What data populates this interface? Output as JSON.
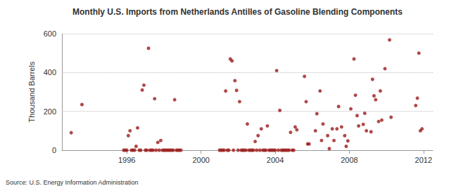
{
  "chart_data": {
    "type": "scatter",
    "title": "Monthly U.S. Imports from Netherlands Antilles of Gasoline Blending Components",
    "y_label": "Thousand Barrels",
    "source": "Source: U.S. Energy Information Administration",
    "color": "#9b1c1c",
    "marker": "circle",
    "grid": true,
    "xlim": [
      1992.5,
      2012.5
    ],
    "xticks": [
      1996,
      2000,
      2004,
      2008,
      2012
    ],
    "ylim": [
      0,
      600
    ],
    "yticks": [
      0,
      200,
      400,
      600
    ],
    "x": [
      1993.0,
      1993.58,
      1995.83,
      1995.92,
      1996.0,
      1996.08,
      1996.17,
      1996.25,
      1996.33,
      1996.42,
      1996.5,
      1996.58,
      1996.67,
      1996.75,
      1996.83,
      1996.92,
      1997.0,
      1997.08,
      1997.17,
      1997.25,
      1997.33,
      1997.42,
      1997.5,
      1997.58,
      1997.67,
      1997.75,
      1997.83,
      1997.92,
      1998.0,
      1998.08,
      1998.17,
      1998.25,
      1998.33,
      1998.42,
      1998.5,
      1998.58,
      1998.67,
      1998.75,
      1998.83,
      1998.92,
      2001.0,
      2001.08,
      2001.17,
      2001.25,
      2001.33,
      2001.42,
      2001.5,
      2001.58,
      2001.67,
      2001.75,
      2001.83,
      2001.92,
      2002.0,
      2002.08,
      2002.17,
      2002.25,
      2002.33,
      2002.42,
      2002.5,
      2002.58,
      2002.67,
      2002.75,
      2002.83,
      2002.92,
      2003.0,
      2003.08,
      2003.17,
      2003.25,
      2003.33,
      2003.42,
      2003.5,
      2003.58,
      2003.67,
      2003.75,
      2003.83,
      2003.92,
      2004.0,
      2004.08,
      2004.17,
      2004.25,
      2004.33,
      2004.42,
      2004.5,
      2004.58,
      2004.67,
      2004.75,
      2004.83,
      2004.92,
      2005.0,
      2005.08,
      2005.17,
      2005.58,
      2005.67,
      2005.75,
      2005.83,
      2006.17,
      2006.25,
      2006.42,
      2006.5,
      2006.58,
      2006.83,
      2006.92,
      2007.08,
      2007.17,
      2007.33,
      2007.42,
      2007.58,
      2007.75,
      2007.83,
      2007.92,
      2008.08,
      2008.25,
      2008.33,
      2008.42,
      2008.5,
      2008.75,
      2008.83,
      2008.92,
      2009.17,
      2009.25,
      2009.33,
      2009.42,
      2009.58,
      2009.67,
      2009.75,
      2009.92,
      2010.17,
      2010.25,
      2011.58,
      2011.67,
      2011.75,
      2011.83,
      2011.92
    ],
    "values": [
      90,
      235,
      0,
      0,
      0,
      75,
      100,
      0,
      0,
      0,
      20,
      115,
      0,
      0,
      310,
      335,
      0,
      0,
      525,
      0,
      0,
      0,
      265,
      0,
      40,
      0,
      50,
      0,
      0,
      0,
      0,
      0,
      0,
      0,
      0,
      260,
      0,
      0,
      0,
      0,
      0,
      0,
      0,
      0,
      305,
      0,
      0,
      470,
      460,
      0,
      358,
      308,
      0,
      250,
      0,
      0,
      0,
      0,
      135,
      0,
      0,
      0,
      0,
      45,
      0,
      75,
      0,
      110,
      0,
      0,
      0,
      125,
      0,
      0,
      0,
      0,
      0,
      410,
      0,
      205,
      0,
      0,
      0,
      0,
      0,
      0,
      92,
      0,
      0,
      120,
      105,
      380,
      250,
      32,
      32,
      100,
      188,
      305,
      50,
      135,
      75,
      8,
      110,
      50,
      110,
      225,
      120,
      75,
      20,
      48,
      213,
      470,
      283,
      178,
      125,
      133,
      190,
      100,
      95,
      365,
      280,
      260,
      148,
      305,
      155,
      420,
      568,
      170,
      230,
      268,
      500,
      100,
      110
    ]
  }
}
